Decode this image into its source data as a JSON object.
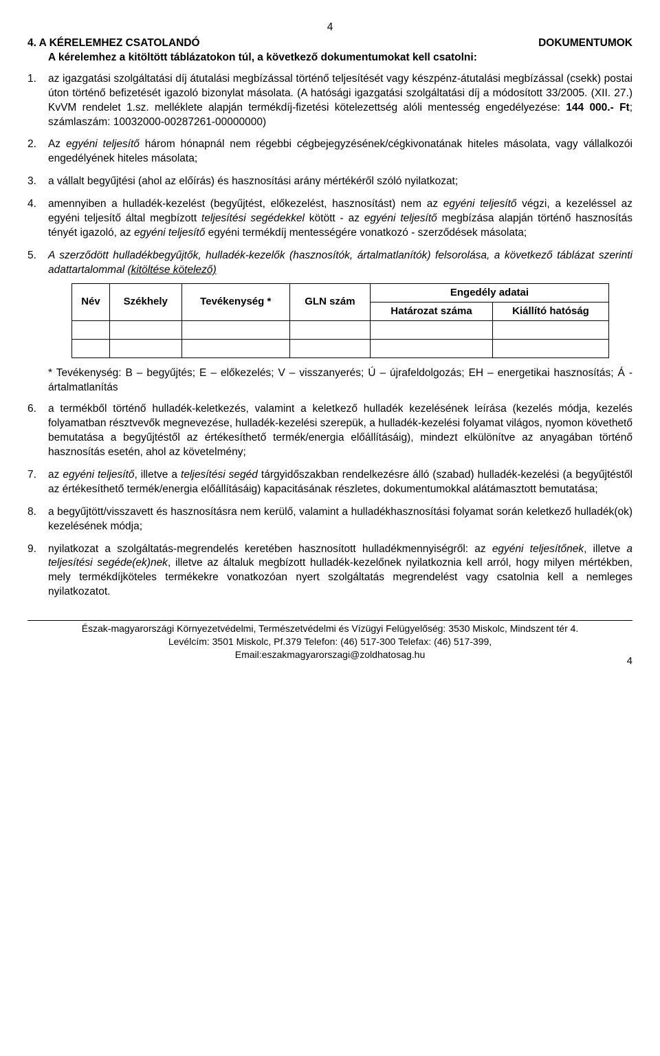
{
  "page_number_top": "4",
  "section_heading_left": "4.  A  KÉRELEMHEZ  CSATOLANDÓ",
  "section_heading_right": "DOKUMENTUMOK",
  "intro": "A kérelemhez a kitöltött táblázatokon túl, a következő dokumentumokat kell csatolni:",
  "items": {
    "n1": "1.",
    "t1a": "az igazgatási szolgáltatási díj átutalási megbízással történő teljesítését vagy készpénz-átutalási megbízással (csekk) postai úton történő befizetését igazoló bizonylat másolata. (A hatósági igazgatási szolgáltatási díj a módosított 33/2005. (XII. 27.) KvVM rendelet 1.sz. melléklete alapján termékdíj-fizetési kötelezettség alóli mentesség engedélyezése: ",
    "t1b": "144 000.- Ft",
    "t1c": "; számlaszám: 10032000-00287261-00000000)",
    "n2": "2.",
    "t2a": "Az ",
    "t2b": "egyéni teljesítő",
    "t2c": " három hónapnál nem régebbi cégbejegyzésének/cégkivonatának hiteles másolata, vagy vállalkozói engedélyének hiteles másolata;",
    "n3": "3.",
    "t3": "a vállalt begyűjtési (ahol az előírás) és hasznosítási arány mértékéről szóló nyilatkozat;",
    "n4": "4.",
    "t4a": "amennyiben a hulladék-kezelést (begyűjtést, előkezelést, hasznosítást) nem az ",
    "t4b": "egyéni teljesítő",
    "t4c": " végzi, a kezeléssel az egyéni teljesítő által megbízott ",
    "t4d": "teljesítési segédekkel",
    "t4e": " kötött - az ",
    "t4f": "egyéni teljesítő",
    "t4g": " megbízása alapján történő hasznosítás tényét igazoló, az ",
    "t4h": "egyéni teljesítő",
    "t4i": " egyéni termékdíj mentességére vonatkozó - szerződések másolata;",
    "n5": "5.",
    "t5a": "A szerződött hulladékbegyűjtők, hulladék-kezelők (hasznosítók, ártalmatlanítók) felsorolása, a következő táblázat szerinti adattartalommal ",
    "t5b": "(kitöltése kötelező)",
    "table": {
      "h_nev": "Név",
      "h_szek": "Székhely",
      "h_tev": "Tevékenység *",
      "h_gln": "GLN szám",
      "h_eng": "Engedély adatai",
      "h_hat": "Határozat száma",
      "h_kial": "Kiállító hatóság"
    },
    "footnote": "* Tevékenység: B – begyűjtés; E – előkezelés; V – visszanyerés; Ú – újrafeldolgozás; EH – energetikai hasznosítás; Á - ártalmatlanítás",
    "n6": "6.",
    "t6": "a termékből történő hulladék-keletkezés, valamint a keletkező hulladék kezelésének leírása (kezelés módja, kezelés folyamatban résztvevők megnevezése, hulladék-kezelési szerepük, a hulladék-kezelési folyamat világos, nyomon követhető bemutatása a begyűjtéstől az értékesíthető termék/energia előállításáig), mindezt elkülönítve az anyagában történő hasznosítás esetén, ahol az követelmény;",
    "n7": "7.",
    "t7a": "az ",
    "t7b": "egyéni teljesítő",
    "t7c": ", illetve a ",
    "t7d": "teljesítési segéd",
    "t7e": " tárgyidőszakban rendelkezésre álló (szabad) hulladék-kezelési (a begyűjtéstől az értékesíthető termék/energia előállításáig) kapacitásának részletes, dokumentumokkal alátámasztott bemutatása;",
    "n8": "8.",
    "t8": "a begyűjtött/visszavett és hasznosításra nem kerülő, valamint a hulladékhasznosítási folyamat során keletkező hulladék(ok) kezelésének módja;",
    "n9": "9.",
    "t9a": "nyilatkozat a szolgáltatás-megrendelés keretében hasznosított hulladékmennyiségről: az ",
    "t9b": "egyéni teljesítőnek",
    "t9c": ", illetve ",
    "t9d": "a teljesítési segéde(ek)nek",
    "t9e": ", illetve az általuk megbízott hulladék-kezelőnek nyilatkoznia kell arról, hogy milyen mértékben, mely termékdíjköteles termékekre vonatkozóan nyert szolgáltatás megrendelést vagy csatolnia kell a nemleges nyilatkozatot."
  },
  "footer": {
    "line1": "Észak-magyarországi Környezetvédelmi, Természetvédelmi és Vízügyi Felügyelőség: 3530 Miskolc, Mindszent tér 4.",
    "line2": "Levélcím: 3501 Miskolc, Pf.379    Telefon: (46) 517-300 Telefax: (46) 517-399,",
    "line3": "Email:eszakmagyarorszagi@zoldhatosag.hu",
    "page_num": "4"
  }
}
